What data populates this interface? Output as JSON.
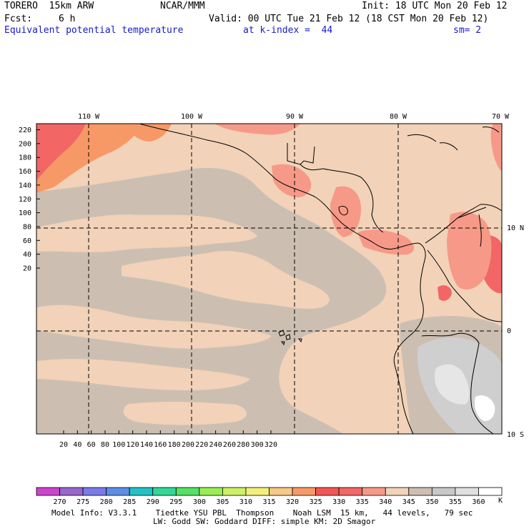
{
  "header": {
    "model": "TORERO  15km ARW",
    "org": "NCAR/MMM",
    "init": "Init: 18 UTC Mon 20 Feb 12",
    "fcst_label": "Fcst:",
    "fcst_value": "6 h",
    "valid": "Valid: 00 UTC Tue 21 Feb 12 (18 CST Mon 20 Feb 12)",
    "field": "Equivalent potential temperature",
    "level": "at k-index =  44",
    "smooth": "sm= 2"
  },
  "map": {
    "top_lon_labels": [
      "110 W",
      "100 W",
      "90 W",
      "80 W",
      "70 W"
    ],
    "right_lat_labels": [
      "10 N",
      "0",
      "10 S"
    ],
    "y_ticks": [
      "220",
      "200",
      "180",
      "160",
      "140",
      "120",
      "100",
      "80",
      "60",
      "40",
      "20"
    ],
    "x_ticks": [
      "20",
      "40",
      "60",
      "80",
      "100",
      "120",
      "140",
      "160",
      "180",
      "200",
      "220",
      "240",
      "260",
      "280",
      "300",
      "320"
    ]
  },
  "colorbar": {
    "labels": [
      "270",
      "275",
      "280",
      "285",
      "290",
      "295",
      "300",
      "305",
      "310",
      "315",
      "320",
      "325",
      "330",
      "335",
      "340",
      "345",
      "350",
      "355",
      "360"
    ],
    "unit": "K",
    "colors": [
      "#cc44cc",
      "#9966cc",
      "#7a7ae8",
      "#5c8ee6",
      "#22c2c2",
      "#33d699",
      "#55e066",
      "#99ee55",
      "#ccf066",
      "#f2f07a",
      "#f7c888",
      "#f79966",
      "#f25555",
      "#f26666",
      "#f79988",
      "#f2d2b8",
      "#ccbfb2",
      "#c8c8c8",
      "#e0e0e0",
      "#ffffff"
    ]
  },
  "footer": {
    "line1": "Model Info: V3.3.1    Tiedtke YSU PBL  Thompson    Noah LSM  15 km,   44 levels,   79 sec",
    "line2": "LW: Godd SW: Goddard DIFF: simple KM: 2D Smagor"
  }
}
